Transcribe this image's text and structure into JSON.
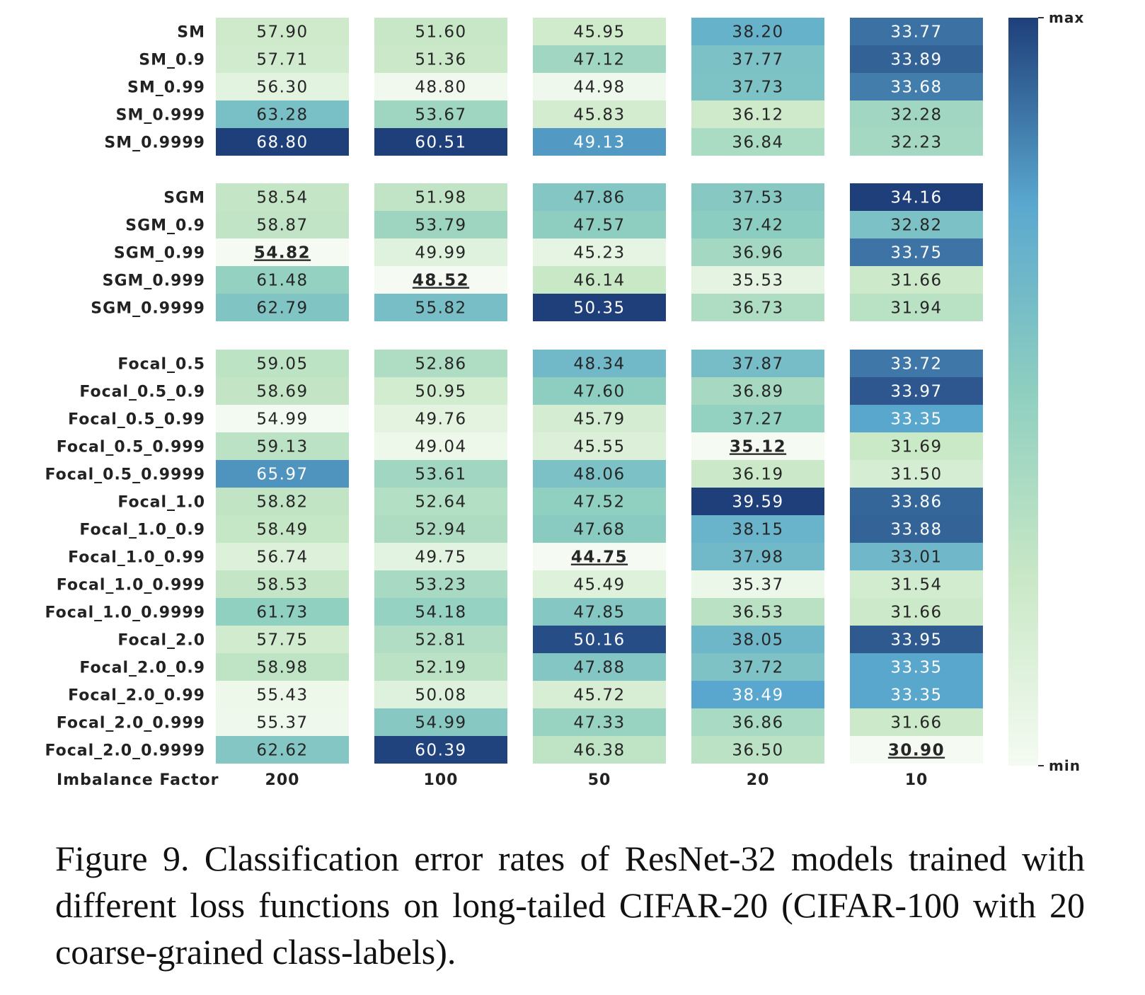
{
  "chart_data": {
    "type": "heatmap",
    "xlabel": "Imbalance Factor",
    "columns": [
      "200",
      "100",
      "50",
      "20",
      "10"
    ],
    "colorbar": {
      "max_label": "max",
      "min_label": "min",
      "color_min": "#f5fbf3",
      "color_mid": "#8fcfc0",
      "color_max": "#1f3f7a"
    },
    "color_scale_per_column": true,
    "groups": [
      {
        "rows": [
          {
            "label": "SM",
            "values": [
              57.9,
              51.6,
              45.95,
              38.2,
              33.77
            ]
          },
          {
            "label": "SM_0.9",
            "values": [
              57.71,
              51.36,
              47.12,
              37.77,
              33.89
            ]
          },
          {
            "label": "SM_0.99",
            "values": [
              56.3,
              48.8,
              44.98,
              37.73,
              33.68
            ]
          },
          {
            "label": "SM_0.999",
            "values": [
              63.28,
              53.67,
              45.83,
              36.12,
              32.28
            ]
          },
          {
            "label": "SM_0.9999",
            "values": [
              68.8,
              60.51,
              49.13,
              36.84,
              32.23
            ]
          }
        ]
      },
      {
        "rows": [
          {
            "label": "SGM",
            "values": [
              58.54,
              51.98,
              47.86,
              37.53,
              34.16
            ]
          },
          {
            "label": "SGM_0.9",
            "values": [
              58.87,
              53.79,
              47.57,
              37.42,
              32.82
            ]
          },
          {
            "label": "SGM_0.99",
            "values": [
              54.82,
              49.99,
              45.23,
              36.96,
              33.75
            ]
          },
          {
            "label": "SGM_0.999",
            "values": [
              61.48,
              48.52,
              46.14,
              35.53,
              31.66
            ]
          },
          {
            "label": "SGM_0.9999",
            "values": [
              62.79,
              55.82,
              50.35,
              36.73,
              31.94
            ]
          }
        ]
      },
      {
        "rows": [
          {
            "label": "Focal_0.5",
            "values": [
              59.05,
              52.86,
              48.34,
              37.87,
              33.72
            ]
          },
          {
            "label": "Focal_0.5_0.9",
            "values": [
              58.69,
              50.95,
              47.6,
              36.89,
              33.97
            ]
          },
          {
            "label": "Focal_0.5_0.99",
            "values": [
              54.99,
              49.76,
              45.79,
              37.27,
              33.35
            ]
          },
          {
            "label": "Focal_0.5_0.999",
            "values": [
              59.13,
              49.04,
              45.55,
              35.12,
              31.69
            ]
          },
          {
            "label": "Focal_0.5_0.9999",
            "values": [
              65.97,
              53.61,
              48.06,
              36.19,
              31.5
            ]
          },
          {
            "label": "Focal_1.0",
            "values": [
              58.82,
              52.64,
              47.52,
              39.59,
              33.86
            ]
          },
          {
            "label": "Focal_1.0_0.9",
            "values": [
              58.49,
              52.94,
              47.68,
              38.15,
              33.88
            ]
          },
          {
            "label": "Focal_1.0_0.99",
            "values": [
              56.74,
              49.75,
              44.75,
              37.98,
              33.01
            ]
          },
          {
            "label": "Focal_1.0_0.999",
            "values": [
              58.53,
              53.23,
              45.49,
              35.37,
              31.54
            ]
          },
          {
            "label": "Focal_1.0_0.9999",
            "values": [
              61.73,
              54.18,
              47.85,
              36.53,
              31.66
            ]
          },
          {
            "label": "Focal_2.0",
            "values": [
              57.75,
              52.81,
              50.16,
              38.05,
              33.95
            ]
          },
          {
            "label": "Focal_2.0_0.9",
            "values": [
              58.98,
              52.19,
              47.88,
              37.72,
              33.35
            ]
          },
          {
            "label": "Focal_2.0_0.99",
            "values": [
              55.43,
              50.08,
              45.72,
              38.49,
              33.35
            ]
          },
          {
            "label": "Focal_2.0_0.999",
            "values": [
              55.37,
              54.99,
              47.33,
              36.86,
              31.66
            ]
          },
          {
            "label": "Focal_2.0_0.9999",
            "values": [
              62.62,
              60.39,
              46.38,
              36.5,
              30.9
            ]
          }
        ]
      }
    ],
    "bold_underlined_minimums": [
      {
        "row": "SGM_0.99",
        "column": "200",
        "value": 54.82
      },
      {
        "row": "SGM_0.999",
        "column": "100",
        "value": 48.52
      },
      {
        "row": "Focal_1.0_0.99",
        "column": "50",
        "value": 44.75
      },
      {
        "row": "Focal_0.5_0.999",
        "column": "20",
        "value": 35.12
      },
      {
        "row": "Focal_2.0_0.9999",
        "column": "10",
        "value": 30.9
      }
    ]
  },
  "caption": "Figure 9. Classification error rates of ResNet-32 models trained with different loss functions on long-tailed CIFAR-20 (CIFAR-100 with 20 coarse-grained class-labels)."
}
